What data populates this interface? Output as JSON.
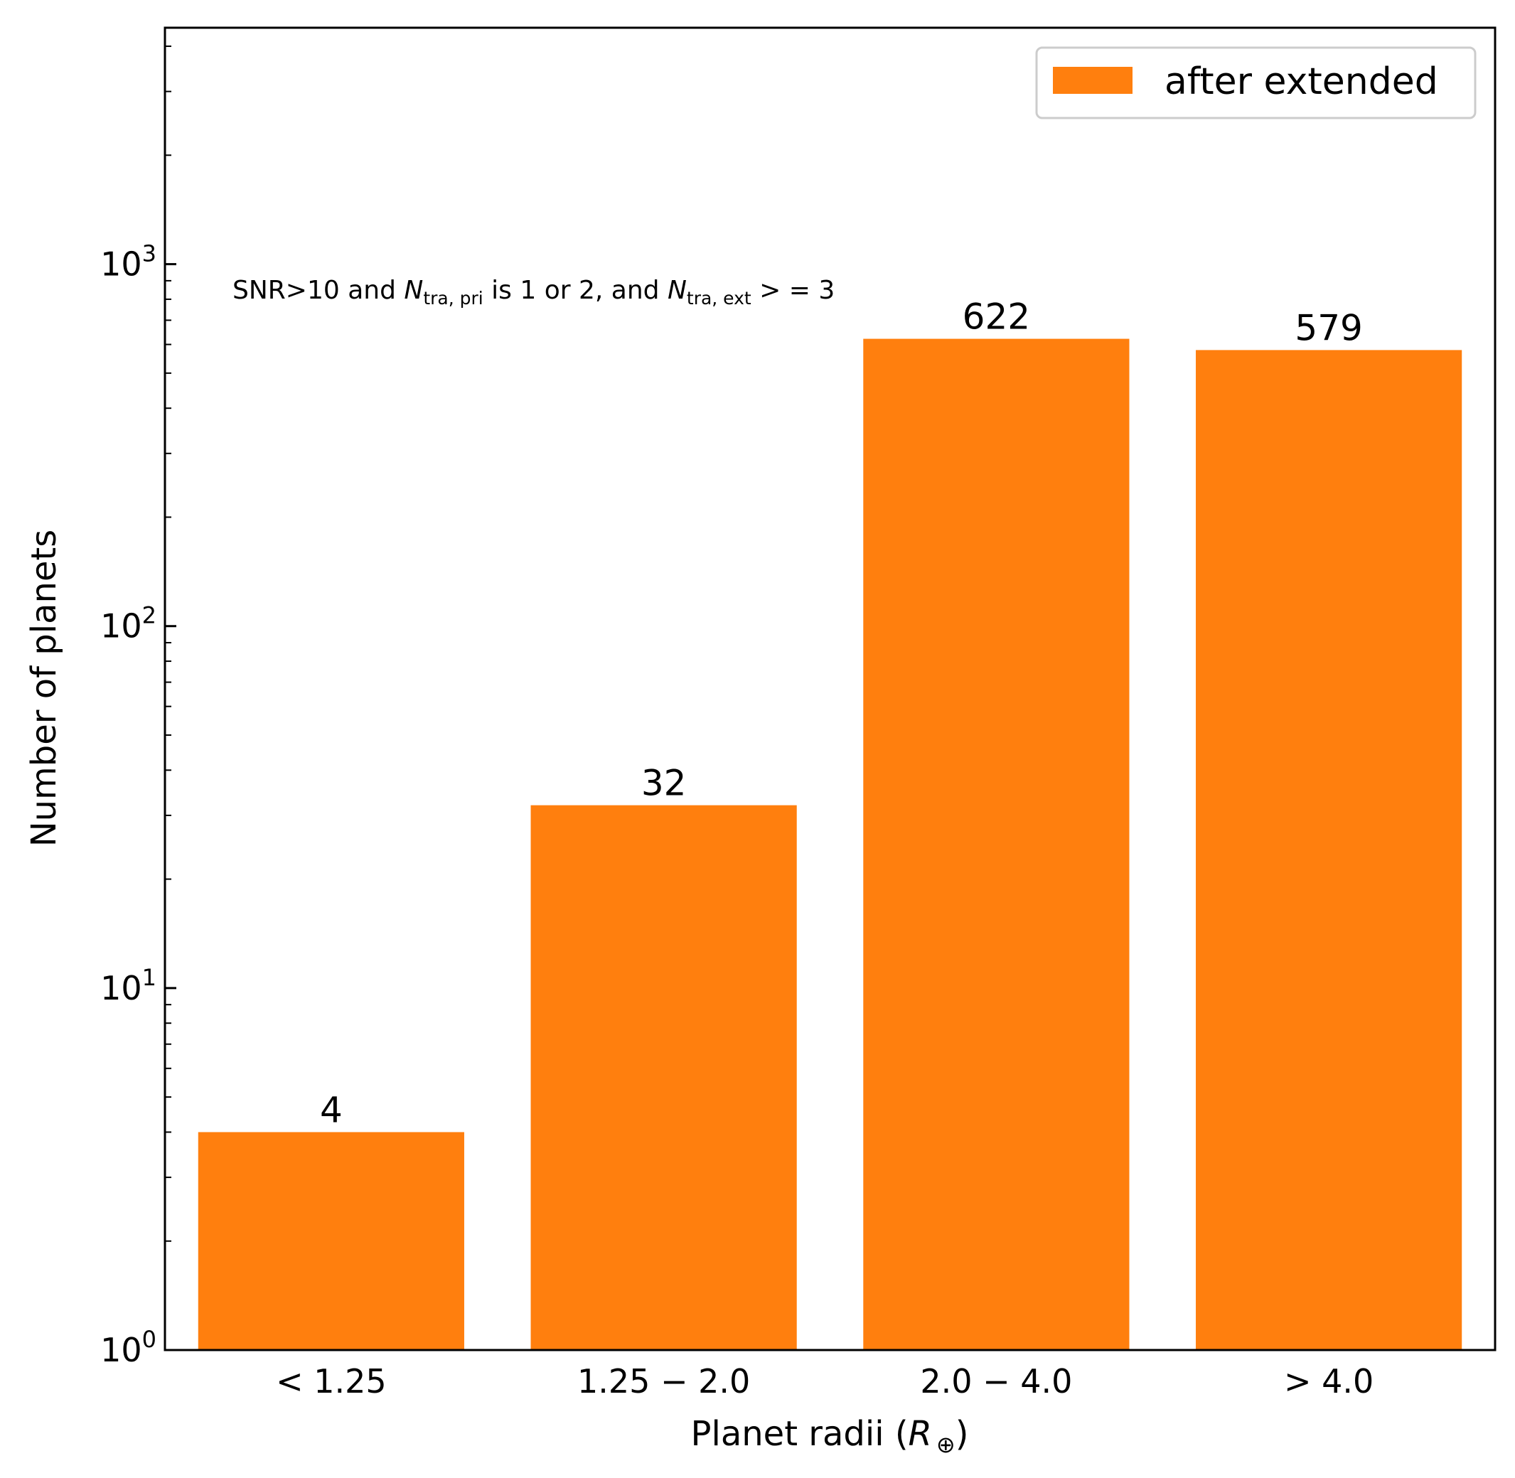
{
  "chart_data": {
    "type": "bar",
    "categories": [
      "< 1.25",
      "1.25 − 2.0",
      "2.0 − 4.0",
      "> 4.0"
    ],
    "series": [
      {
        "name": "after extended",
        "values": [
          4,
          32,
          622,
          579
        ],
        "color": "#ff7f0e"
      }
    ],
    "data_labels": [
      "4",
      "32",
      "622",
      "579"
    ],
    "xlabel": "Planet radii (R⊕)",
    "ylabel": "Number of planets",
    "yscale": "log",
    "ylim": [
      1,
      4500
    ],
    "yticks": [
      {
        "value": 1,
        "base": "10",
        "exp": "0"
      },
      {
        "value": 10,
        "base": "10",
        "exp": "1"
      },
      {
        "value": 100,
        "base": "10",
        "exp": "2"
      },
      {
        "value": 1000,
        "base": "10",
        "exp": "3"
      }
    ],
    "annotation": {
      "text": "SNR>10 and N_tra,pri is 1 or 2, and N_tra,ext >= 3",
      "part1": "SNR>10 and ",
      "n1": "N",
      "n1_sub": "tra, pri",
      "part2": " is 1 or 2, and ",
      "n2": "N",
      "n2_sub": "tra, ext",
      "part3": " > = 3"
    },
    "xlabel_parts": {
      "pre": "Planet radii (",
      "sym": "R",
      "sub": "⊕",
      "post": ")"
    },
    "legend": {
      "position": "top-right"
    },
    "tick_direction": "in",
    "grid": false
  }
}
